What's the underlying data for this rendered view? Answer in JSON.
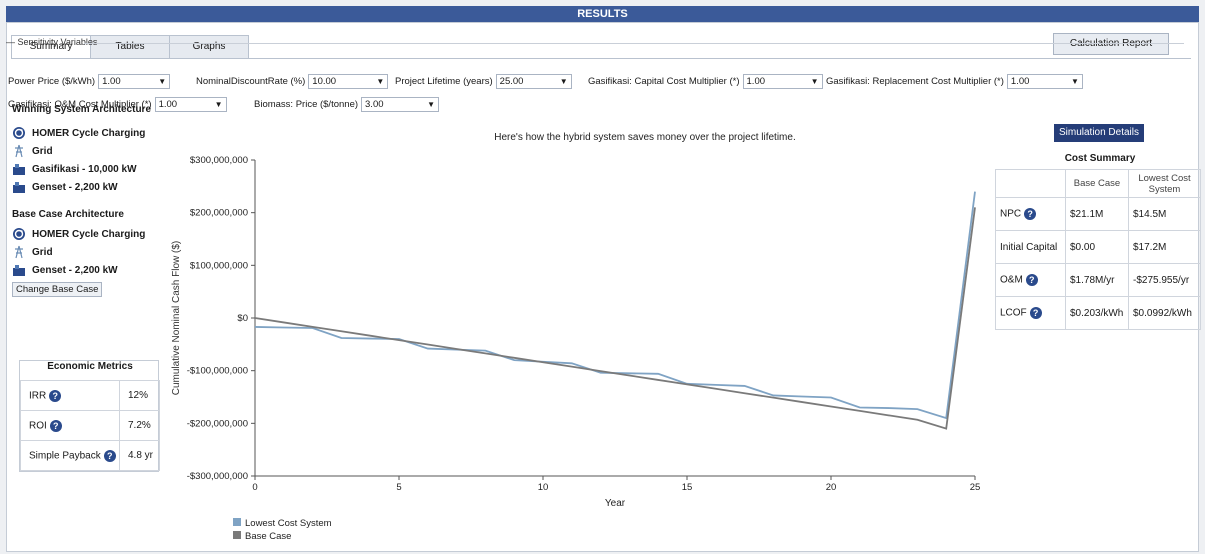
{
  "window": {
    "title": "RESULTS"
  },
  "tabs": [
    {
      "label": "Summary"
    },
    {
      "label": "Tables"
    },
    {
      "label": "Graphs"
    }
  ],
  "calc_report_label": "Calculation Report",
  "sensitivity": {
    "title": "Sensitivity Variables",
    "items": [
      {
        "label": "Power Price ($/kWh)",
        "value": "1.00"
      },
      {
        "label": "NominalDiscountRate (%)",
        "value": "10.00"
      },
      {
        "label": "Project Lifetime (years)",
        "value": "25.00"
      },
      {
        "label": "Gasifikasi: Capital Cost Multiplier (*)",
        "value": "1.00"
      },
      {
        "label": "Gasifikasi: Replacement Cost Multiplier (*)",
        "value": "1.00"
      },
      {
        "label": "Gasifikasi: O&M Cost Multiplier (*)",
        "value": "1.00"
      },
      {
        "label": "Biomass: Price ($/tonne)",
        "value": "3.00"
      }
    ]
  },
  "winning": {
    "title": "Winning System Architecture",
    "items": [
      {
        "label": "HOMER Cycle Charging",
        "icon": "cycle-charging-icon"
      },
      {
        "label": "Grid",
        "icon": "grid-tower-icon"
      },
      {
        "label": "Gasifikasi - 10,000 kW",
        "icon": "generator-icon"
      },
      {
        "label": "Genset - 2,200 kW",
        "icon": "generator-icon"
      }
    ]
  },
  "base": {
    "title": "Base Case Architecture",
    "items": [
      {
        "label": "HOMER Cycle Charging",
        "icon": "cycle-charging-icon"
      },
      {
        "label": "Grid",
        "icon": "grid-tower-icon"
      },
      {
        "label": "Genset - 2,200 kW",
        "icon": "generator-icon"
      }
    ],
    "change_label": "Change Base Case"
  },
  "metrics": {
    "title": "Economic Metrics",
    "rows": [
      {
        "label": "IRR",
        "value": "12%"
      },
      {
        "label": "ROI",
        "value": "7.2%"
      },
      {
        "label": "Simple Payback",
        "value": "4.8 yr"
      }
    ]
  },
  "sim_details_label": "Simulation Details",
  "cost_summary": {
    "title": "Cost Summary",
    "headers": [
      "",
      "Base Case",
      "Lowest Cost System"
    ],
    "rows": [
      {
        "label": "NPC",
        "help": true,
        "base": "$21.1M",
        "lowest": "$14.5M"
      },
      {
        "label": "Initial Capital",
        "help": false,
        "base": "$0.00",
        "lowest": "$17.2M"
      },
      {
        "label": "O&M",
        "help": true,
        "base": "$1.78M/yr",
        "lowest": "-$275.955/yr"
      },
      {
        "label": "LCOF",
        "help": true,
        "base": "$0.203/kWh",
        "lowest": "$0.0992/kWh"
      }
    ]
  },
  "colors": {
    "title_bar": "#3b5a99",
    "lowest_series": "#7fa3c4",
    "base_series": "#7a7a7a",
    "button_dark": "#253d78"
  },
  "chart_data": {
    "type": "line",
    "title": "Here's how the hybrid system saves money over the project lifetime.",
    "xlabel": "Year",
    "ylabel": "Cumulative Nominal Cash Flow ($)",
    "xlim": [
      0,
      25
    ],
    "ylim": [
      -300000000,
      300000000
    ],
    "xticks": [
      0,
      5,
      10,
      15,
      20,
      25
    ],
    "yticks": [
      {
        "value": 300000000,
        "label": "$300,000,000"
      },
      {
        "value": 200000000,
        "label": "$200,000,000"
      },
      {
        "value": 100000000,
        "label": "$100,000,000"
      },
      {
        "value": 0,
        "label": "$0"
      },
      {
        "value": -100000000,
        "label": "-$100,000,000"
      },
      {
        "value": -200000000,
        "label": "-$200,000,000"
      },
      {
        "value": -300000000,
        "label": "-$300,000,000"
      }
    ],
    "x": [
      0,
      1,
      2,
      3,
      4,
      5,
      6,
      7,
      8,
      9,
      10,
      11,
      12,
      13,
      14,
      15,
      16,
      17,
      18,
      19,
      20,
      21,
      22,
      23,
      24,
      25
    ],
    "series": [
      {
        "name": "Lowest Cost System",
        "color": "#7fa3c4",
        "values": [
          -17000000,
          -18000000,
          -19000000,
          -38000000,
          -39000000,
          -40000000,
          -58000000,
          -60000000,
          -62000000,
          -80000000,
          -83000000,
          -86000000,
          -104000000,
          -105000000,
          -106000000,
          -125000000,
          -127000000,
          -129000000,
          -147000000,
          -149000000,
          -151000000,
          -170000000,
          -171000000,
          -173000000,
          -190000000,
          240000000
        ]
      },
      {
        "name": "Base Case",
        "color": "#7a7a7a",
        "values": [
          0,
          -8400000,
          -16800000,
          -25200000,
          -33600000,
          -42000000,
          -50400000,
          -58800000,
          -67200000,
          -75600000,
          -84000000,
          -92400000,
          -100800000,
          -109200000,
          -117600000,
          -126000000,
          -134400000,
          -142800000,
          -151200000,
          -159600000,
          -168000000,
          -176400000,
          -184800000,
          -193200000,
          -210000000,
          210000000
        ]
      }
    ],
    "legend": "bottom-left",
    "grid": false
  }
}
